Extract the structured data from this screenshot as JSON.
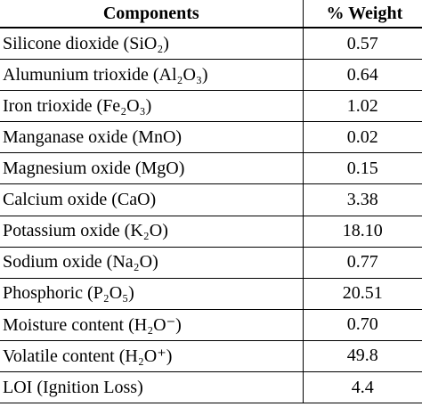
{
  "table": {
    "header": [
      "Components",
      "% Weight"
    ],
    "rows": [
      [
        "Silicone dioxide (SiO₂)",
        "0.57"
      ],
      [
        "Alumunium trioxide (Al₂O₃)",
        "0.64"
      ],
      [
        "Iron trioxide (Fe₂O₃)",
        "1.02"
      ],
      [
        "Manganase oxide (MnO)",
        "0.02"
      ],
      [
        "Magnesium oxide (MgO)",
        "0.15"
      ],
      [
        "Calcium oxide (CaO)",
        "3.38"
      ],
      [
        "Potassium oxide (K₂O)",
        "18.10"
      ],
      [
        "Sodium oxide (Na₂O)",
        "0.77"
      ],
      [
        "Phosphoric  (P₂O₅)",
        "20.51"
      ],
      [
        "Moisture content (H₂O⁻)",
        "0.70"
      ],
      [
        "Volatile content (H₂O⁺)",
        "49.8"
      ],
      [
        "LOI (Ignition Loss)",
        "4.4"
      ]
    ]
  }
}
